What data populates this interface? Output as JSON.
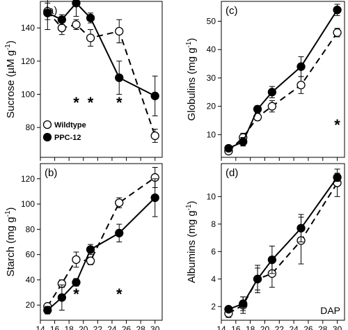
{
  "chart_data": [
    {
      "type": "line",
      "panel_label": "(a)",
      "ylabel": "Sucrose (µM g⁻¹)",
      "xlim": [
        14,
        31
      ],
      "ylim": [
        62,
        156
      ],
      "yticks": [
        80,
        100,
        120,
        140
      ],
      "xticks": [
        14,
        16,
        18,
        20,
        22,
        24,
        26,
        28,
        30
      ],
      "show_x_tick_labels": false,
      "legend": {
        "position": "bottom-left",
        "entries": [
          {
            "label": "Wildtype",
            "marker": "open"
          },
          {
            "label": "PPC-12",
            "marker": "filled"
          }
        ]
      },
      "series": [
        {
          "marker": "open",
          "dashed": true,
          "x": [
            15,
            17,
            19,
            21,
            25,
            30
          ],
          "y": [
            150,
            140,
            142,
            134,
            138,
            75
          ],
          "err": [
            5,
            4,
            3,
            5,
            7,
            4
          ]
        },
        {
          "marker": "filled",
          "dashed": false,
          "x": [
            15,
            17,
            19,
            21,
            25,
            30
          ],
          "y": [
            149,
            145,
            155,
            146,
            110,
            99
          ],
          "err": [
            10,
            3,
            8,
            3,
            10,
            12
          ]
        }
      ],
      "significance_x": [
        19,
        21,
        25
      ],
      "significance_y": 96,
      "significance_symbol": "*"
    },
    {
      "type": "line",
      "panel_label": "(b)",
      "ylabel": "Starch (mg g⁻¹)",
      "xlim": [
        14,
        31
      ],
      "ylim": [
        8,
        132
      ],
      "yticks": [
        20,
        40,
        60,
        80,
        100,
        120
      ],
      "xticks": [
        14,
        16,
        18,
        20,
        22,
        24,
        26,
        28,
        30
      ],
      "show_x_tick_labels": true,
      "series": [
        {
          "marker": "open",
          "dashed": true,
          "x": [
            15,
            17,
            19,
            21,
            25,
            30
          ],
          "y": [
            19,
            37,
            56,
            55,
            101,
            121
          ],
          "err": [
            2,
            3,
            6,
            3,
            4,
            8
          ]
        },
        {
          "marker": "filled",
          "dashed": false,
          "x": [
            15,
            17,
            19,
            21,
            25,
            30
          ],
          "y": [
            16,
            26,
            38,
            64,
            77,
            105
          ],
          "err": [
            3,
            10,
            3,
            4,
            7,
            15
          ]
        }
      ],
      "significance_x": [
        19,
        25
      ],
      "significance_y": 30,
      "significance_symbol": "*"
    },
    {
      "type": "line",
      "panel_label": "(c)",
      "ylabel": "Globulins (mg g⁻¹)",
      "xlim": [
        14,
        31
      ],
      "ylim": [
        2,
        57
      ],
      "yticks": [
        10,
        20,
        30,
        40,
        50
      ],
      "xticks": [
        14,
        16,
        18,
        20,
        22,
        24,
        26,
        28,
        30
      ],
      "show_x_tick_labels": false,
      "series": [
        {
          "marker": "open",
          "dashed": true,
          "x": [
            15,
            17,
            19,
            21,
            25,
            30
          ],
          "y": [
            4.2,
            9,
            16.2,
            20,
            27.5,
            46
          ],
          "err": [
            0.8,
            1.5,
            1.2,
            2,
            3,
            1.5
          ]
        },
        {
          "marker": "filled",
          "dashed": false,
          "x": [
            15,
            17,
            19,
            21,
            25,
            30
          ],
          "y": [
            5.2,
            7.5,
            19,
            25,
            34,
            54
          ],
          "err": [
            0.8,
            1.5,
            1.2,
            2,
            3.5,
            2
          ]
        }
      ],
      "significance_x": [
        30
      ],
      "significance_y": 14,
      "significance_symbol": "*"
    },
    {
      "type": "line",
      "panel_label": "(d)",
      "ylabel": "Albumins (mg g⁻¹)",
      "xlabel": "DAP",
      "xlim": [
        14,
        31
      ],
      "ylim": [
        1,
        12.4
      ],
      "yticks": [
        2,
        4,
        6,
        8,
        10
      ],
      "xticks": [
        14,
        16,
        18,
        20,
        22,
        24,
        26,
        28,
        30
      ],
      "show_x_tick_labels": true,
      "series": [
        {
          "marker": "open",
          "dashed": true,
          "x": [
            15,
            17,
            19,
            21,
            25,
            30
          ],
          "y": [
            1.5,
            2.1,
            4.0,
            4.4,
            6.8,
            11.0
          ],
          "err": [
            0.3,
            0.6,
            1.0,
            1.0,
            1.7,
            1.0
          ]
        },
        {
          "marker": "filled",
          "dashed": false,
          "x": [
            15,
            17,
            19,
            21,
            25,
            30
          ],
          "y": [
            1.8,
            2.2,
            4.0,
            5.4,
            7.7,
            11.4
          ],
          "err": [
            0.2,
            0.5,
            0.8,
            1.0,
            1.0,
            0.3
          ]
        }
      ],
      "significance_x": [],
      "significance_y": 0,
      "significance_symbol": "*"
    }
  ]
}
